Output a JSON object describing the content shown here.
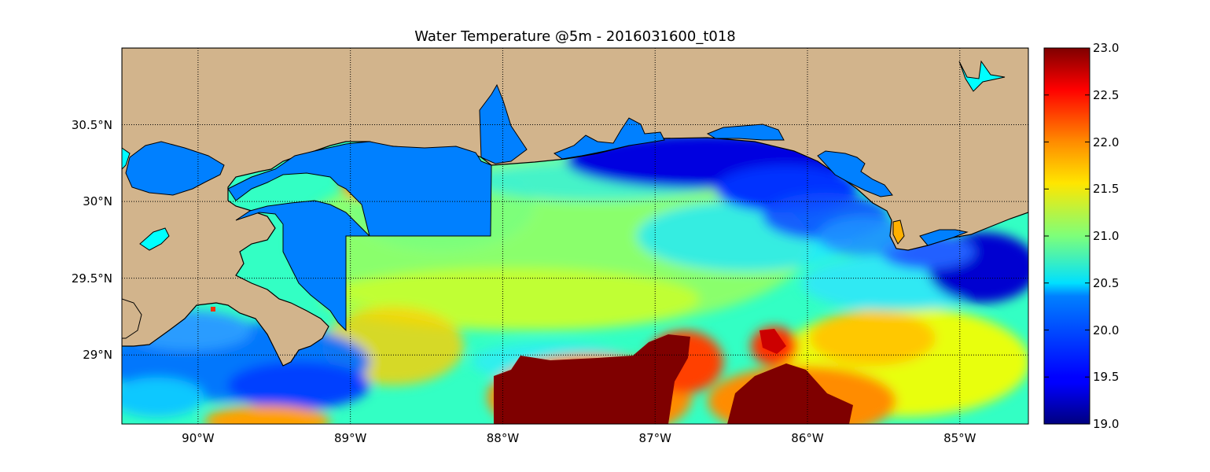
{
  "title": "Water Temperature @5m - 2016031600_t018",
  "map": {
    "lon_range": [
      -90.5,
      -84.55
    ],
    "lat_range": [
      28.55,
      31.0
    ],
    "x_ticks": [
      {
        "lon": -90,
        "label": "90°W"
      },
      {
        "lon": -89,
        "label": "89°W"
      },
      {
        "lon": -88,
        "label": "88°W"
      },
      {
        "lon": -87,
        "label": "87°W"
      },
      {
        "lon": -86,
        "label": "86°W"
      },
      {
        "lon": -85,
        "label": "85°W"
      }
    ],
    "y_ticks": [
      {
        "lat": 30.5,
        "label": "30.5°N"
      },
      {
        "lat": 30.0,
        "label": "30°N"
      },
      {
        "lat": 29.5,
        "label": "29.5°N"
      },
      {
        "lat": 29.0,
        "label": "29°N"
      }
    ],
    "grid": "dotted",
    "colors": {
      "land": "#d2b48c",
      "inland_water": "#0080ff",
      "coastline": "#000000",
      "lake_cyan": "#00ffff"
    }
  },
  "colorbar": {
    "min": 19.0,
    "max": 23.0,
    "colormap": "jet",
    "tick_labels": [
      "23.0",
      "22.5",
      "22.0",
      "21.5",
      "21.0",
      "20.5",
      "20.0",
      "19.5",
      "19.0"
    ]
  },
  "chart_data": {
    "type": "heatmap",
    "title": "Water Temperature @5m - 2016031600_t018",
    "variable": "Water Temperature",
    "depth": "5m",
    "run": "2016031600_t018",
    "value_range": [
      19.0,
      23.0
    ],
    "xlabel": "",
    "ylabel": "",
    "notes_visible": "Warm (≥23.0) water south of 29°N between 88°W and 86°W; cold (19.0–19.5) water near the coast east of 87°W."
  }
}
